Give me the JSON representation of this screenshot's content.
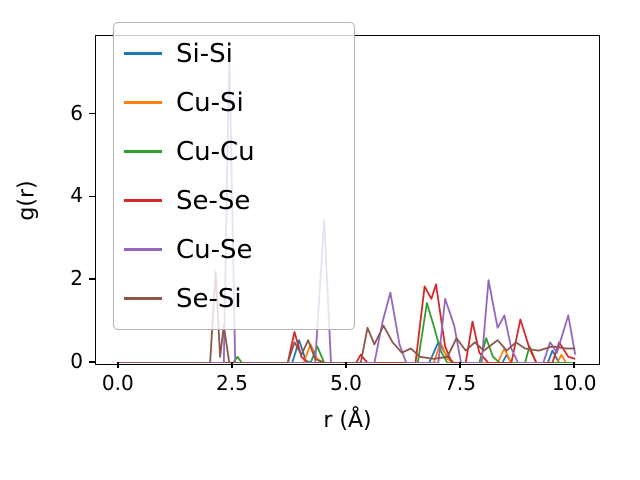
{
  "chart_data": {
    "type": "line",
    "title": "",
    "xlabel": "r (Å)",
    "ylabel": "g(r)",
    "xlim": [
      -0.5,
      10.5
    ],
    "ylim": [
      0,
      7.9
    ],
    "grid": false,
    "legend_position": "upper left",
    "xtick_values": [
      0,
      2.5,
      5.0,
      7.5,
      10.0
    ],
    "xtick_labels": [
      "0.0",
      "2.5",
      "5.0",
      "7.5",
      "10.0"
    ],
    "ytick_values": [
      0,
      2,
      4,
      6
    ],
    "ytick_labels": [
      "0",
      "2",
      "4",
      "6"
    ],
    "series": [
      {
        "name": "Si-Si",
        "color": "#1f77b4",
        "points": [
          [
            0,
            0
          ],
          [
            3.8,
            0
          ],
          [
            3.95,
            0.55
          ],
          [
            4.1,
            0.05
          ],
          [
            4.25,
            0
          ],
          [
            6.8,
            0
          ],
          [
            7.0,
            0.5
          ],
          [
            7.2,
            0.15
          ],
          [
            7.35,
            0
          ],
          [
            8.4,
            0
          ],
          [
            8.5,
            0.2
          ],
          [
            8.6,
            0
          ],
          [
            9.4,
            0
          ],
          [
            9.5,
            0.3
          ],
          [
            9.65,
            0
          ],
          [
            10,
            0
          ]
        ]
      },
      {
        "name": "Cu-Si",
        "color": "#ff7f0e",
        "points": [
          [
            0,
            0
          ],
          [
            4.05,
            0
          ],
          [
            4.2,
            0.45
          ],
          [
            4.35,
            0.1
          ],
          [
            4.5,
            0
          ],
          [
            6.9,
            0
          ],
          [
            7.05,
            0.5
          ],
          [
            7.2,
            0.1
          ],
          [
            7.35,
            0
          ],
          [
            8.3,
            0
          ],
          [
            8.45,
            0.35
          ],
          [
            8.6,
            0
          ],
          [
            9.6,
            0
          ],
          [
            9.7,
            0.2
          ],
          [
            9.8,
            0
          ],
          [
            10,
            0
          ]
        ]
      },
      {
        "name": "Cu-Cu",
        "color": "#2ca02c",
        "points": [
          [
            0,
            0
          ],
          [
            2.5,
            0
          ],
          [
            2.6,
            0.15
          ],
          [
            2.7,
            0
          ],
          [
            4.2,
            0
          ],
          [
            4.35,
            0.4
          ],
          [
            4.5,
            0
          ],
          [
            6.55,
            0
          ],
          [
            6.75,
            1.45
          ],
          [
            6.9,
            0.9
          ],
          [
            7.05,
            0.3
          ],
          [
            7.2,
            0
          ],
          [
            7.9,
            0
          ],
          [
            8.05,
            0.6
          ],
          [
            8.2,
            0.15
          ],
          [
            8.35,
            0
          ],
          [
            8.9,
            0
          ],
          [
            9.0,
            0.4
          ],
          [
            9.15,
            0
          ],
          [
            10,
            0
          ]
        ]
      },
      {
        "name": "Se-Se",
        "color": "#d62728",
        "points": [
          [
            0,
            0
          ],
          [
            3.7,
            0
          ],
          [
            3.85,
            0.75
          ],
          [
            4.0,
            0.15
          ],
          [
            4.15,
            0
          ],
          [
            5.2,
            0
          ],
          [
            5.3,
            0.2
          ],
          [
            5.45,
            0
          ],
          [
            6.5,
            0
          ],
          [
            6.7,
            1.85
          ],
          [
            6.85,
            1.55
          ],
          [
            6.95,
            1.9
          ],
          [
            7.15,
            0.4
          ],
          [
            7.3,
            0
          ],
          [
            7.6,
            0
          ],
          [
            7.75,
            1.0
          ],
          [
            7.9,
            0.25
          ],
          [
            8.1,
            0
          ],
          [
            8.6,
            0
          ],
          [
            8.8,
            1.05
          ],
          [
            9.0,
            0.35
          ],
          [
            9.15,
            0
          ],
          [
            9.5,
            0
          ],
          [
            9.65,
            0.5
          ],
          [
            9.85,
            0.15
          ],
          [
            10,
            0.1
          ]
        ]
      },
      {
        "name": "Cu-Se",
        "color": "#9467bd",
        "points": [
          [
            0,
            0
          ],
          [
            2.3,
            0
          ],
          [
            2.42,
            7.5
          ],
          [
            2.55,
            0
          ],
          [
            4.3,
            0
          ],
          [
            4.5,
            3.45
          ],
          [
            4.65,
            0
          ],
          [
            5.6,
            0
          ],
          [
            5.78,
            1.0
          ],
          [
            5.95,
            1.7
          ],
          [
            6.15,
            0.45
          ],
          [
            6.3,
            0
          ],
          [
            7.0,
            0
          ],
          [
            7.15,
            1.55
          ],
          [
            7.35,
            0.9
          ],
          [
            7.5,
            0
          ],
          [
            7.95,
            0
          ],
          [
            8.1,
            2.0
          ],
          [
            8.3,
            0.85
          ],
          [
            8.45,
            1.15
          ],
          [
            8.6,
            0.35
          ],
          [
            8.75,
            0
          ],
          [
            9.3,
            0
          ],
          [
            9.45,
            0.5
          ],
          [
            9.6,
            0.25
          ],
          [
            9.85,
            1.15
          ],
          [
            10,
            0.2
          ]
        ]
      },
      {
        "name": "Se-Si",
        "color": "#8c564b",
        "points": [
          [
            0,
            0
          ],
          [
            2.0,
            0
          ],
          [
            2.12,
            2.2
          ],
          [
            2.22,
            0.15
          ],
          [
            2.3,
            0.9
          ],
          [
            2.42,
            0
          ],
          [
            3.7,
            0
          ],
          [
            3.85,
            0.5
          ],
          [
            4.0,
            0.2
          ],
          [
            4.15,
            0.55
          ],
          [
            4.3,
            0.1
          ],
          [
            4.5,
            0
          ],
          [
            5.3,
            0
          ],
          [
            5.45,
            0.85
          ],
          [
            5.6,
            0.45
          ],
          [
            5.8,
            0.9
          ],
          [
            6.0,
            0.5
          ],
          [
            6.2,
            0.25
          ],
          [
            6.4,
            0.35
          ],
          [
            6.6,
            0.15
          ],
          [
            6.9,
            0.1
          ],
          [
            7.2,
            0.15
          ],
          [
            7.4,
            0.6
          ],
          [
            7.6,
            0.3
          ],
          [
            7.8,
            0.5
          ],
          [
            8.0,
            0.3
          ],
          [
            8.3,
            0.55
          ],
          [
            8.5,
            0.3
          ],
          [
            8.7,
            0.5
          ],
          [
            8.9,
            0.35
          ],
          [
            9.2,
            0.3
          ],
          [
            9.5,
            0.4
          ],
          [
            9.8,
            0.35
          ],
          [
            10,
            0.35
          ]
        ]
      }
    ]
  }
}
